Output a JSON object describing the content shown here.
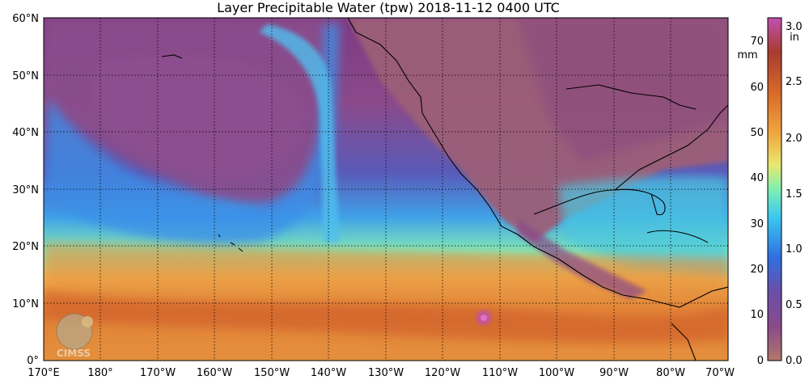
{
  "title": "Layer Precipitable Water (tpw)  2018-11-12 0400 UTC",
  "map": {
    "lat_labels": [
      "60°N",
      "50°N",
      "40°N",
      "30°N",
      "20°N",
      "10°N",
      "0°"
    ],
    "lon_labels": [
      "170°E",
      "180°",
      "170°W",
      "160°W",
      "150°W",
      "140°W",
      "130°W",
      "120°W",
      "110°W",
      "100°W",
      "90°W",
      "80°W",
      "70°W"
    ],
    "watermark": "CIMSS"
  },
  "colorbar": {
    "mm_unit": "mm",
    "in_unit": "in",
    "mm_ticks": [
      "70",
      "60",
      "50",
      "40",
      "30",
      "20",
      "10",
      "0"
    ],
    "in_ticks": [
      "3.0",
      "2.5",
      "2.0",
      "1.5",
      "1.0",
      "0.5",
      "0.0"
    ],
    "colors": [
      "#b0786a",
      "#7e3a82",
      "#6a4fa8",
      "#2f6fe0",
      "#3cc9f0",
      "#7ff0b0",
      "#e8e870",
      "#f0a840",
      "#d86a2a",
      "#a83c30",
      "#c050b0"
    ]
  }
}
